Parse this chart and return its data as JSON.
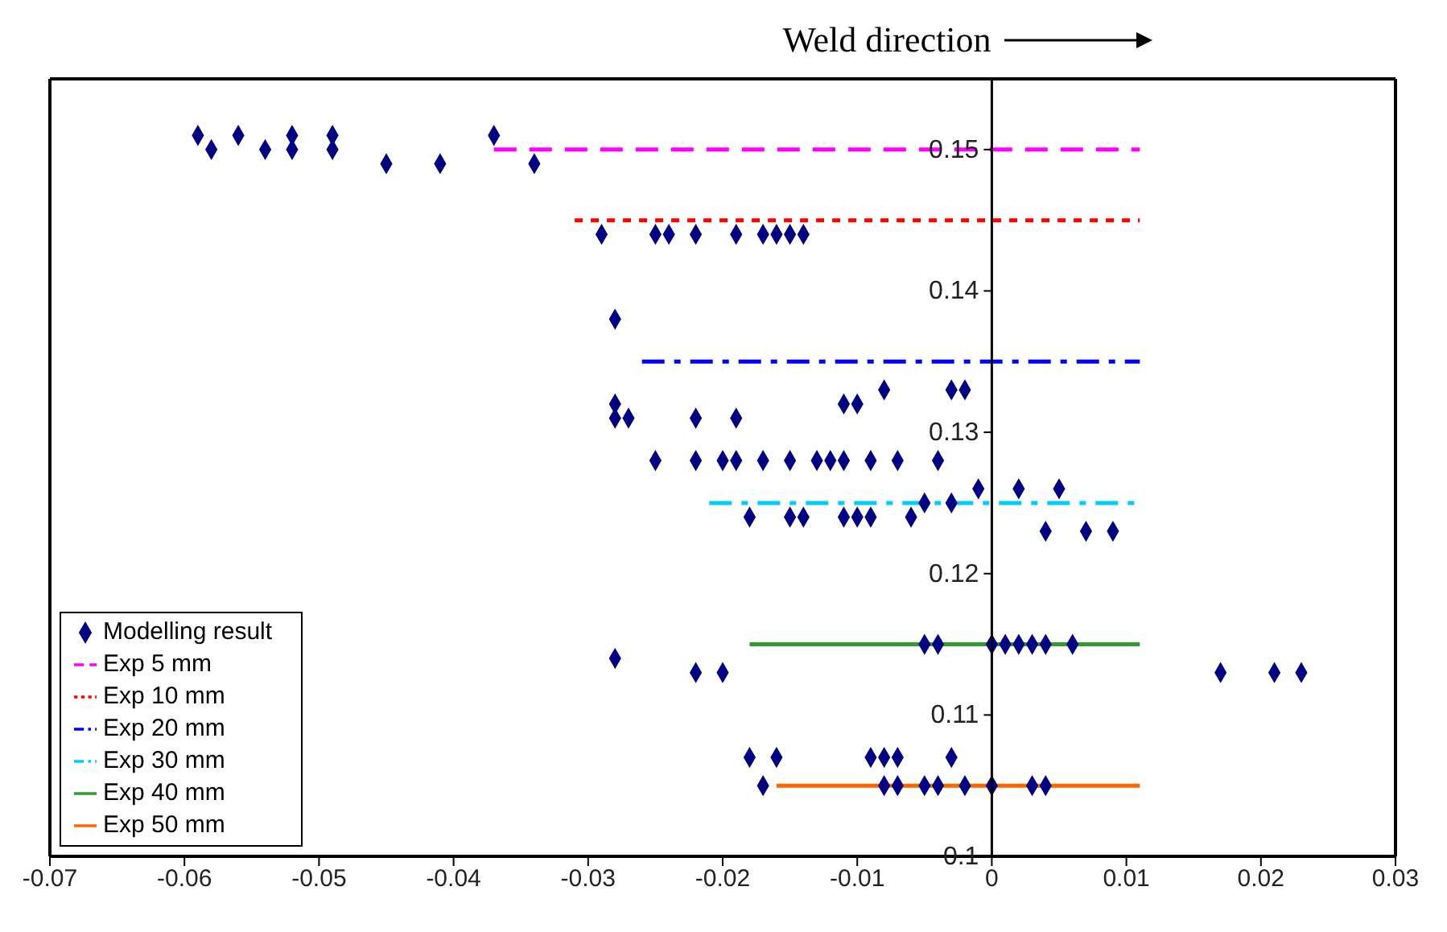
{
  "chart_data": {
    "type": "scatter",
    "annotations": [
      "Weld direction"
    ],
    "xlim": [
      -0.07,
      0.03
    ],
    "xticks": [
      -0.07,
      -0.06,
      -0.05,
      -0.04,
      -0.03,
      -0.02,
      -0.01,
      0,
      0.01,
      0.02,
      0.03
    ],
    "ylim": [
      0.1,
      0.155
    ],
    "yticks": [
      0.1,
      0.11,
      0.12,
      0.13,
      0.14,
      0.15
    ],
    "grid": false,
    "legend": "bottom left",
    "marker": "diamond",
    "series": [
      {
        "name": "Modelling result",
        "type": "scatter",
        "color": "#000080",
        "x": [
          -0.059,
          -0.058,
          -0.056,
          -0.054,
          -0.052,
          -0.052,
          -0.049,
          -0.049,
          -0.045,
          -0.041,
          -0.037,
          -0.034,
          -0.029,
          -0.025,
          -0.024,
          -0.022,
          -0.019,
          -0.017,
          -0.016,
          -0.015,
          -0.014,
          -0.028,
          -0.028,
          -0.028,
          -0.027,
          -0.022,
          -0.019,
          -0.011,
          -0.01,
          -0.008,
          -0.003,
          -0.002,
          -0.025,
          -0.022,
          -0.02,
          -0.019,
          -0.017,
          -0.015,
          -0.013,
          -0.012,
          -0.011,
          -0.009,
          -0.007,
          -0.004,
          -0.001,
          0.002,
          0.005,
          -0.005,
          -0.003,
          -0.018,
          -0.015,
          -0.014,
          -0.011,
          -0.01,
          -0.009,
          -0.006,
          0.004,
          0.007,
          0.009,
          -0.005,
          -0.004,
          0,
          0.001,
          0.002,
          0.003,
          0.004,
          0.006,
          -0.028,
          -0.022,
          -0.02,
          0.017,
          0.021,
          0.023,
          -0.018,
          -0.016,
          -0.009,
          -0.008,
          -0.007,
          -0.003,
          -0.017,
          -0.008,
          -0.007,
          -0.005,
          -0.004,
          -0.002,
          0,
          0.003,
          0.004
        ],
        "values": [
          0.151,
          0.15,
          0.151,
          0.15,
          0.151,
          0.15,
          0.151,
          0.15,
          0.149,
          0.149,
          0.151,
          0.149,
          0.144,
          0.144,
          0.144,
          0.144,
          0.144,
          0.144,
          0.144,
          0.144,
          0.144,
          0.138,
          0.132,
          0.131,
          0.131,
          0.131,
          0.131,
          0.132,
          0.132,
          0.133,
          0.133,
          0.133,
          0.128,
          0.128,
          0.128,
          0.128,
          0.128,
          0.128,
          0.128,
          0.128,
          0.128,
          0.128,
          0.128,
          0.128,
          0.126,
          0.126,
          0.126,
          0.125,
          0.125,
          0.124,
          0.124,
          0.124,
          0.124,
          0.124,
          0.124,
          0.124,
          0.123,
          0.123,
          0.123,
          0.115,
          0.115,
          0.115,
          0.115,
          0.115,
          0.115,
          0.115,
          0.115,
          0.114,
          0.113,
          0.113,
          0.113,
          0.113,
          0.113,
          0.107,
          0.107,
          0.107,
          0.107,
          0.107,
          0.107,
          0.105,
          0.105,
          0.105,
          0.105,
          0.105,
          0.105,
          0.105,
          0.105,
          0.105
        ]
      },
      {
        "name": "Exp 5 mm",
        "type": "line",
        "color": "#ff00ff",
        "line_style": "dashed",
        "marker": "none",
        "x": [
          -0.037,
          0.011
        ],
        "values": [
          0.15,
          0.15
        ]
      },
      {
        "name": "Exp 10 mm",
        "type": "line",
        "color": "#ff0000",
        "line_style": "dotted",
        "marker": "none",
        "x": [
          -0.031,
          0.011
        ],
        "values": [
          0.145,
          0.145
        ]
      },
      {
        "name": "Exp 20 mm",
        "type": "line",
        "color": "#0000ff",
        "line_style": "dashdot",
        "marker": "none",
        "x": [
          -0.026,
          0.011
        ],
        "values": [
          0.135,
          0.135
        ]
      },
      {
        "name": "Exp 30 mm",
        "type": "line",
        "color": "#00ccff",
        "line_style": "dashdot",
        "marker": "none",
        "x": [
          -0.021,
          0.011
        ],
        "values": [
          0.125,
          0.125
        ]
      },
      {
        "name": "Exp 40 mm",
        "type": "line",
        "color": "#339933",
        "line_style": "solid",
        "marker": "none",
        "x": [
          -0.018,
          0.011
        ],
        "values": [
          0.115,
          0.115
        ]
      },
      {
        "name": "Exp 50 mm",
        "type": "line",
        "color": "#ff6600",
        "line_style": "solid",
        "marker": "none",
        "x": [
          -0.016,
          0.011
        ],
        "values": [
          0.105,
          0.105
        ]
      }
    ]
  }
}
